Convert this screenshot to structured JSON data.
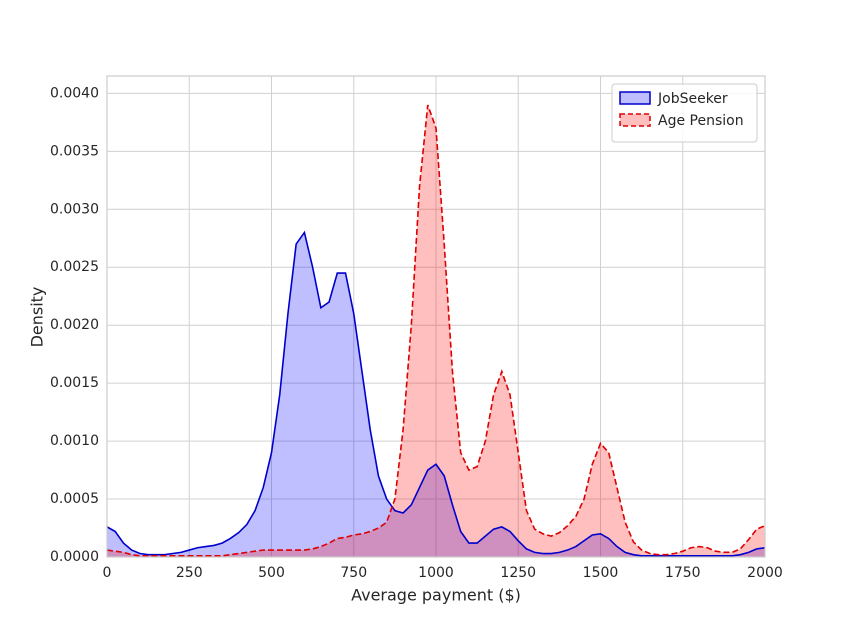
{
  "chart_data": {
    "type": "kde",
    "xlabel": "Average payment ($)",
    "ylabel": "Density",
    "xlim": [
      0,
      2000
    ],
    "ylim": [
      0,
      0.00415
    ],
    "xticks": [
      0,
      250,
      500,
      750,
      1000,
      1250,
      1500,
      1750,
      2000
    ],
    "yticks": [
      {
        "value": 0,
        "label": "0.0000"
      },
      {
        "value": 0.0005,
        "label": "0.0005"
      },
      {
        "value": 0.001,
        "label": "0.0010"
      },
      {
        "value": 0.0015,
        "label": "0.0015"
      },
      {
        "value": 0.002,
        "label": "0.0020"
      },
      {
        "value": 0.0025,
        "label": "0.0025"
      },
      {
        "value": 0.003,
        "label": "0.0030"
      },
      {
        "value": 0.0035,
        "label": "0.0035"
      },
      {
        "value": 0.004,
        "label": "0.0040"
      }
    ],
    "grid": true,
    "legend": "upper right",
    "x": [
      0,
      25,
      50,
      75,
      100,
      125,
      150,
      175,
      200,
      225,
      250,
      275,
      300,
      325,
      350,
      375,
      400,
      425,
      450,
      475,
      500,
      525,
      550,
      575,
      600,
      625,
      650,
      675,
      700,
      725,
      750,
      775,
      800,
      825,
      850,
      875,
      900,
      925,
      950,
      975,
      1000,
      1025,
      1050,
      1075,
      1100,
      1125,
      1150,
      1175,
      1200,
      1225,
      1250,
      1275,
      1300,
      1325,
      1350,
      1375,
      1400,
      1425,
      1450,
      1475,
      1500,
      1525,
      1550,
      1575,
      1600,
      1625,
      1650,
      1675,
      1700,
      1725,
      1750,
      1775,
      1800,
      1825,
      1850,
      1875,
      1900,
      1925,
      1950,
      1975,
      2000
    ],
    "series": [
      {
        "name": "JobSeeker",
        "color": "#0000cc",
        "fill": "#0000ff",
        "linestyle": "solid",
        "values": [
          0.00026,
          0.00022,
          0.00012,
          6e-05,
          3e-05,
          2e-05,
          2e-05,
          2e-05,
          3e-05,
          4e-05,
          6e-05,
          8e-05,
          9e-05,
          0.0001,
          0.00012,
          0.00016,
          0.00021,
          0.00028,
          0.0004,
          0.0006,
          0.0009,
          0.0014,
          0.0021,
          0.0027,
          0.0028,
          0.0025,
          0.00215,
          0.0022,
          0.00245,
          0.00245,
          0.0021,
          0.0016,
          0.0011,
          0.0007,
          0.0005,
          0.0004,
          0.00038,
          0.00045,
          0.0006,
          0.00075,
          0.0008,
          0.0007,
          0.00045,
          0.00022,
          0.00012,
          0.00012,
          0.00018,
          0.00024,
          0.00026,
          0.00022,
          0.00014,
          7e-05,
          4e-05,
          3e-05,
          3e-05,
          4e-05,
          6e-05,
          9e-05,
          0.00014,
          0.00019,
          0.0002,
          0.00016,
          9e-05,
          4e-05,
          2e-05,
          1e-05,
          1e-05,
          1e-05,
          1e-05,
          1e-05,
          1e-05,
          1e-05,
          1e-05,
          1e-05,
          1e-05,
          1e-05,
          1e-05,
          2e-05,
          4e-05,
          7e-05,
          8e-05
        ]
      },
      {
        "name": "Age Pension",
        "color": "#dd0000",
        "fill": "#ff0000",
        "linestyle": "dashed",
        "values": [
          6e-05,
          5e-05,
          4e-05,
          2e-05,
          1e-05,
          1e-05,
          1e-05,
          1e-05,
          1e-05,
          1e-05,
          1e-05,
          1e-05,
          1e-05,
          1e-05,
          1e-05,
          2e-05,
          3e-05,
          4e-05,
          5e-05,
          6e-05,
          6e-05,
          6e-05,
          6e-05,
          6e-05,
          6e-05,
          7e-05,
          9e-05,
          0.00012,
          0.00016,
          0.00017,
          0.00019,
          0.0002,
          0.00022,
          0.00025,
          0.0003,
          0.0005,
          0.0011,
          0.002,
          0.0032,
          0.0039,
          0.0037,
          0.0027,
          0.0016,
          0.0009,
          0.00075,
          0.00078,
          0.001,
          0.0014,
          0.0016,
          0.0014,
          0.0009,
          0.0004,
          0.00024,
          0.0002,
          0.00018,
          0.00021,
          0.00027,
          0.00035,
          0.0005,
          0.0008,
          0.00098,
          0.0009,
          0.0006,
          0.0003,
          0.00013,
          6e-05,
          3e-05,
          2e-05,
          2e-05,
          3e-05,
          5e-05,
          8e-05,
          9e-05,
          8e-05,
          5e-05,
          4e-05,
          4e-05,
          7e-05,
          0.00015,
          0.00024,
          0.00027
        ]
      }
    ]
  }
}
